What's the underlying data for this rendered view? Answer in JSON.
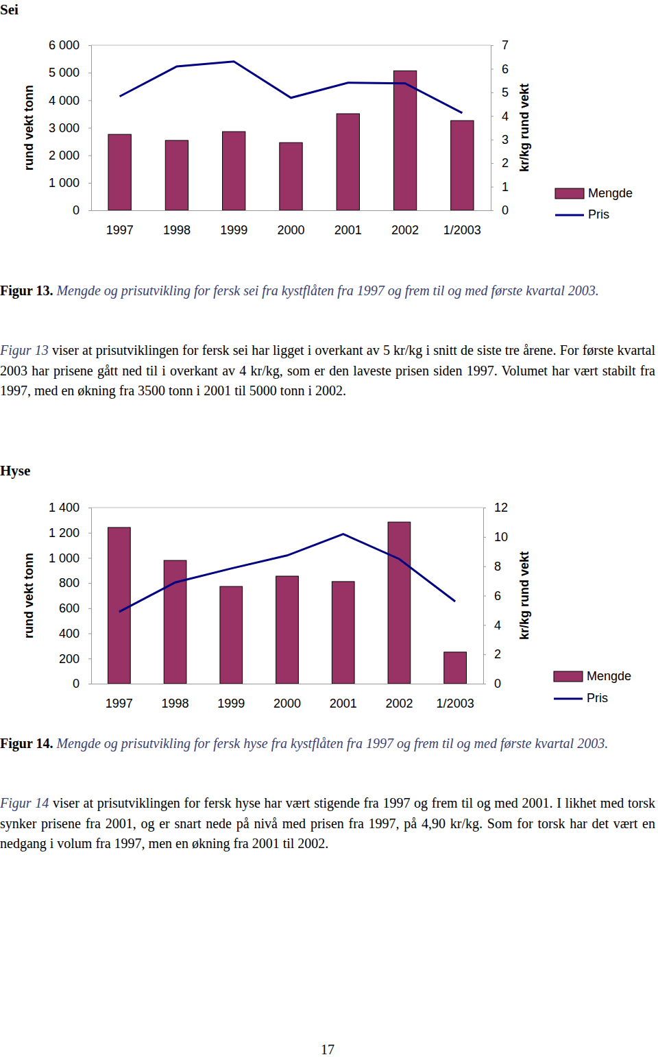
{
  "chart_data": [
    {
      "type": "bar",
      "title": "Sei",
      "categories": [
        "1997",
        "1998",
        "1999",
        "2000",
        "2001",
        "2002",
        "1/2003"
      ],
      "series": [
        {
          "name": "Mengde",
          "type": "bar",
          "color": "#993366",
          "values": [
            2760,
            2540,
            2860,
            2460,
            3510,
            5070,
            3260
          ]
        },
        {
          "name": "Pris",
          "type": "line",
          "color": "#000080",
          "axis": "y2",
          "values": [
            4.83,
            6.1,
            6.31,
            4.77,
            5.41,
            5.38,
            4.13
          ]
        }
      ],
      "y_label": "rund vekt tonn",
      "y2_label": "kr/kg rund vekt",
      "ylim": [
        0,
        6000
      ],
      "yticks": [
        0,
        {
          "value": 1000,
          "label": "1 000"
        },
        {
          "value": 2000,
          "label": "2 000"
        },
        {
          "value": 3000,
          "label": "3 000"
        },
        {
          "value": 4000,
          "label": "4 000"
        },
        {
          "value": 5000,
          "label": "5 000"
        },
        {
          "value": 6000,
          "label": "6 000"
        }
      ],
      "y2lim": [
        0,
        7
      ],
      "y2ticks": [
        0,
        1,
        2,
        3,
        4,
        5,
        6,
        7
      ],
      "legend": "right",
      "grid": false
    },
    {
      "type": "bar",
      "title": "Hyse",
      "categories": [
        "1997",
        "1998",
        "1999",
        "2000",
        "2001",
        "2002",
        "1/2003"
      ],
      "series": [
        {
          "name": "Mengde",
          "type": "bar",
          "color": "#993366",
          "values": [
            1242,
            980,
            773,
            855,
            812,
            1285,
            251
          ]
        },
        {
          "name": "Pris",
          "type": "line",
          "color": "#000080",
          "axis": "y2",
          "values": [
            4.9,
            6.9,
            7.85,
            8.74,
            10.2,
            8.5,
            5.6
          ]
        }
      ],
      "y_label": "rund vekt tonn",
      "y2_label": "kr/kg rund vekt",
      "ylim": [
        0,
        1400
      ],
      "yticks": [
        0,
        200,
        400,
        600,
        800,
        {
          "value": 1000,
          "label": "1 000"
        },
        {
          "value": 1200,
          "label": "1 200"
        },
        {
          "value": 1400,
          "label": "1 400"
        }
      ],
      "y2lim": [
        0,
        12
      ],
      "y2ticks": [
        0,
        2,
        4,
        6,
        8,
        10,
        12
      ],
      "legend": "right",
      "grid": false
    }
  ],
  "document": {
    "figures": [
      {
        "caption_label": "Figur 13.",
        "caption": "Mengde og prisutvikling for fersk sei fra kystflåten fra 1997 og frem til og med første kvartal 2003.",
        "paragraph_lead": "Figur 13",
        "paragraph": " viser at prisutviklingen for fersk sei har ligget i overkant av 5 kr/kg i snitt de siste tre årene. For første kvartal 2003 har prisene gått ned til i overkant av 4 kr/kg, som er den laveste prisen siden 1997. Volumet har vært stabilt fra 1997, med en økning fra 3500 tonn i 2001 til 5000 tonn i 2002."
      },
      {
        "caption_label": "Figur 14.",
        "caption": "Mengde og prisutvikling for fersk hyse fra kystflåten fra 1997 og frem til og med første kvartal 2003.",
        "paragraph_lead": "Figur 14",
        "paragraph": " viser at prisutviklingen for fersk hyse har vært stigende fra 1997 og frem til og med 2001. I likhet med torsk synker prisene fra 2001, og er snart nede på nivå med prisen fra 1997, på 4,90 kr/kg. Som for torsk har det vært en nedgang i volum fra 1997, men en økning fra 2001 til 2002."
      }
    ],
    "page_number": "17"
  }
}
